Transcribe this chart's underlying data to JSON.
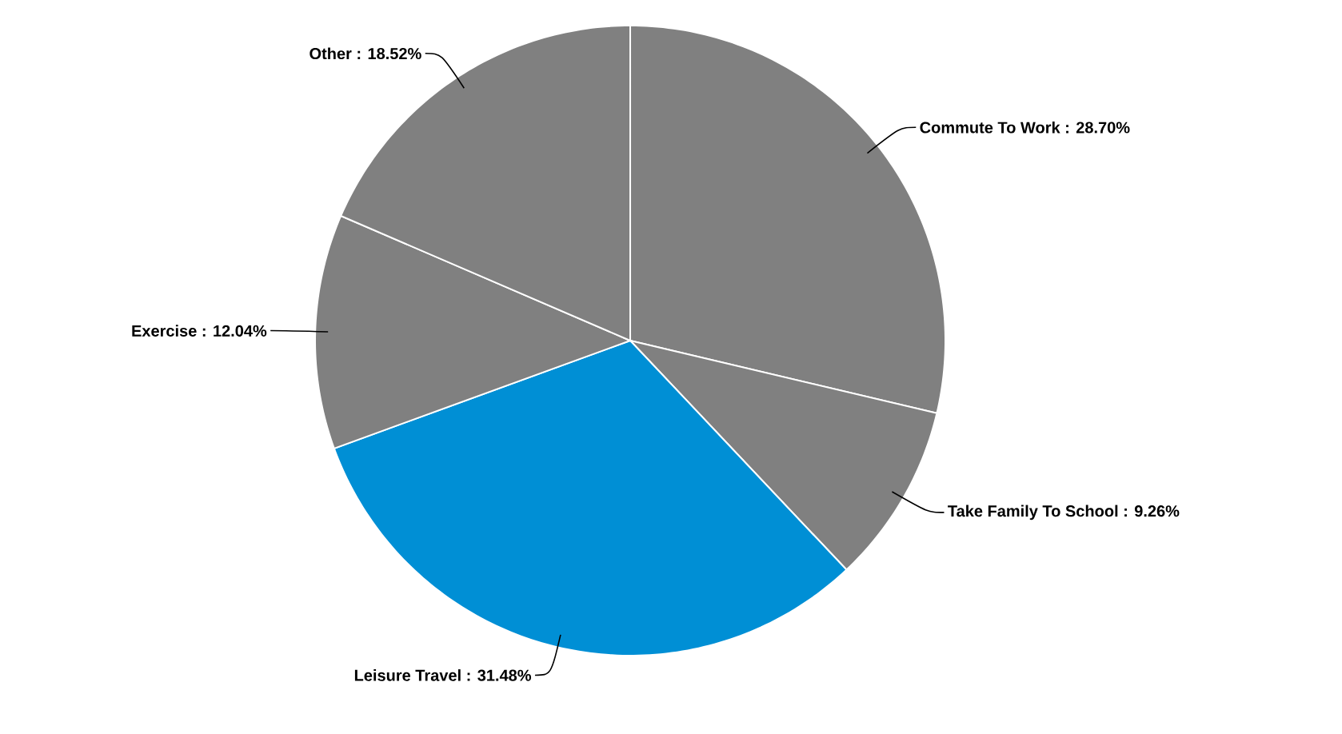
{
  "chart_data": {
    "type": "pie",
    "categories": [
      "Commute To Work",
      "Take Family To School",
      "Leisure Travel",
      "Exercise",
      "Other"
    ],
    "values": [
      28.7,
      9.26,
      31.48,
      12.04,
      18.52
    ],
    "value_labels": [
      ": 28.70%",
      ": 9.26%",
      ": 31.48%",
      ": 12.04%",
      ": 18.52%"
    ],
    "colors": [
      "#808080",
      "#808080",
      "#008fd5",
      "#808080",
      "#808080"
    ]
  }
}
